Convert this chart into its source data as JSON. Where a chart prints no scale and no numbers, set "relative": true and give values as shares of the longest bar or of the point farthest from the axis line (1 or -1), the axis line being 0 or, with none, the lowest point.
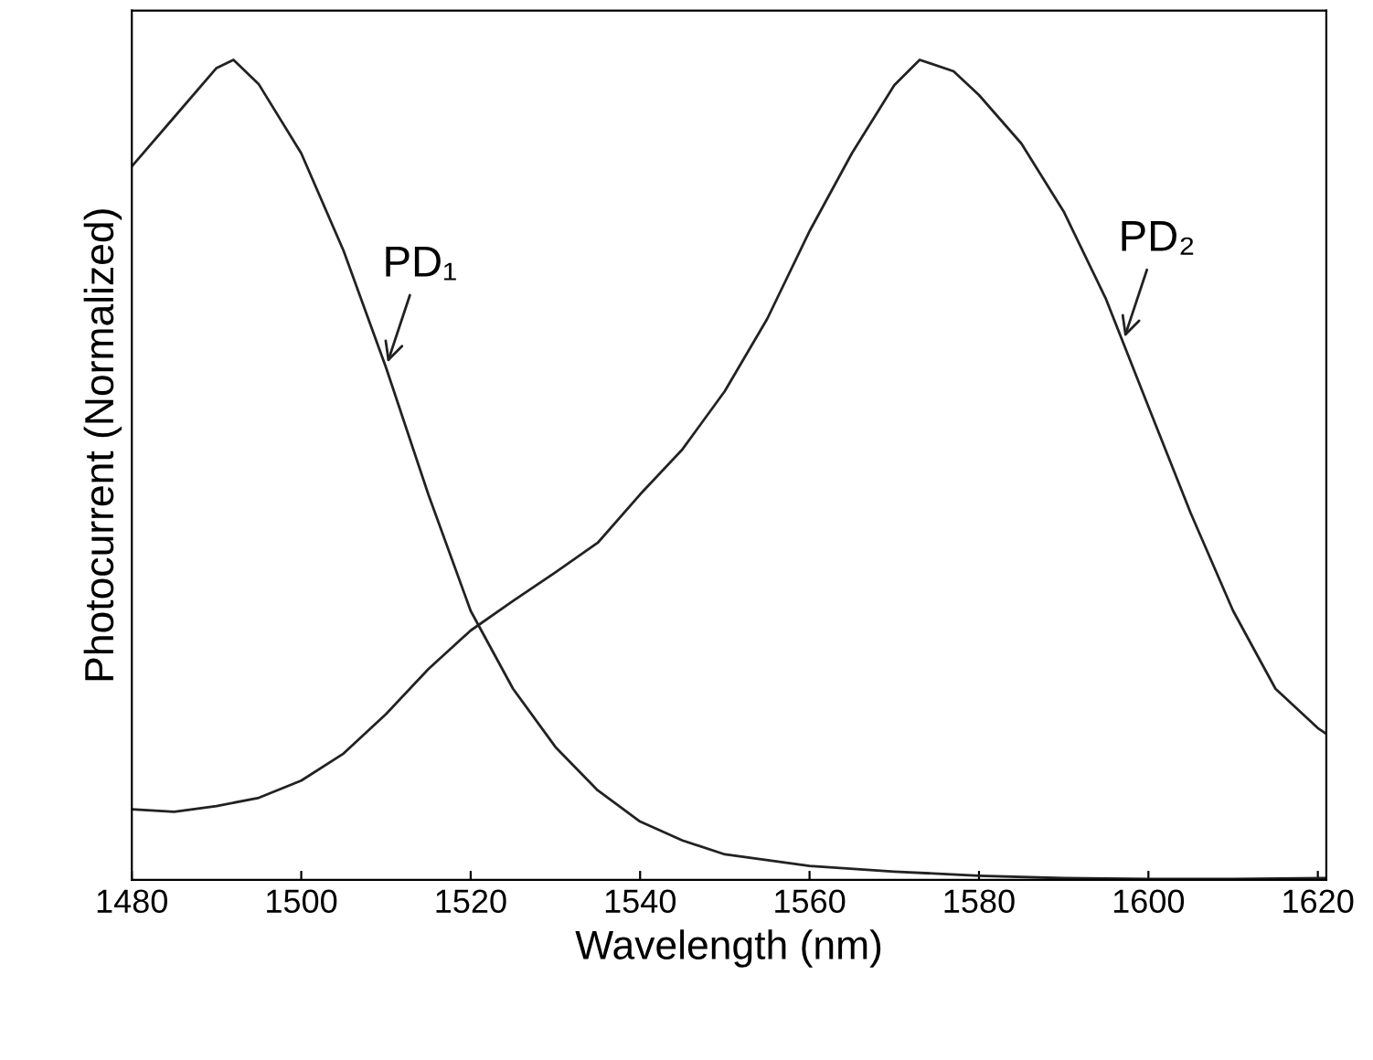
{
  "chart_data": {
    "type": "line",
    "relative": true,
    "xlabel": "Wavelength (nm)",
    "ylabel": "Photocurrent (Normalized)",
    "xlim": [
      1480,
      1621
    ],
    "xticks": [
      1480,
      1500,
      1520,
      1540,
      1560,
      1580,
      1600,
      1620
    ],
    "tick_labels": "x",
    "grid": false,
    "legend": false,
    "marker": "none",
    "line_style": "solid",
    "series": [
      {
        "color": "#222222",
        "x": [
          1480,
          1485,
          1490,
          1492,
          1495,
          1500,
          1505,
          1510,
          1515,
          1520,
          1525,
          1530,
          1535,
          1540,
          1545,
          1550,
          1560,
          1570,
          1580,
          1590,
          1600,
          1610,
          1621
        ],
        "values": [
          0.87,
          0.93,
          0.99,
          1.0,
          0.97,
          0.886,
          0.767,
          0.625,
          0.47,
          0.328,
          0.233,
          0.162,
          0.109,
          0.071,
          0.048,
          0.031,
          0.017,
          0.01,
          0.005,
          0.002,
          0.001,
          0.001,
          0.002
        ]
      },
      {
        "color": "#222222",
        "x": [
          1480,
          1485,
          1490,
          1495,
          1500,
          1505,
          1510,
          1515,
          1520,
          1525,
          1530,
          1535,
          1540,
          1545,
          1550,
          1555,
          1560,
          1565,
          1570,
          1573,
          1577,
          1580,
          1585,
          1590,
          1595,
          1600,
          1605,
          1610,
          1615,
          1620,
          1621
        ],
        "values": [
          0.086,
          0.083,
          0.09,
          0.1,
          0.121,
          0.154,
          0.202,
          0.257,
          0.304,
          0.34,
          0.375,
          0.411,
          0.47,
          0.525,
          0.596,
          0.684,
          0.791,
          0.886,
          0.969,
          1.0,
          0.986,
          0.957,
          0.898,
          0.815,
          0.708,
          0.577,
          0.447,
          0.328,
          0.233,
          0.185,
          0.178
        ]
      }
    ],
    "annotations": [
      {
        "text": "PD₁",
        "x": 1510,
        "y": 0.625
      },
      {
        "text": "PD₂",
        "x": 1597,
        "y": 0.656
      }
    ]
  }
}
